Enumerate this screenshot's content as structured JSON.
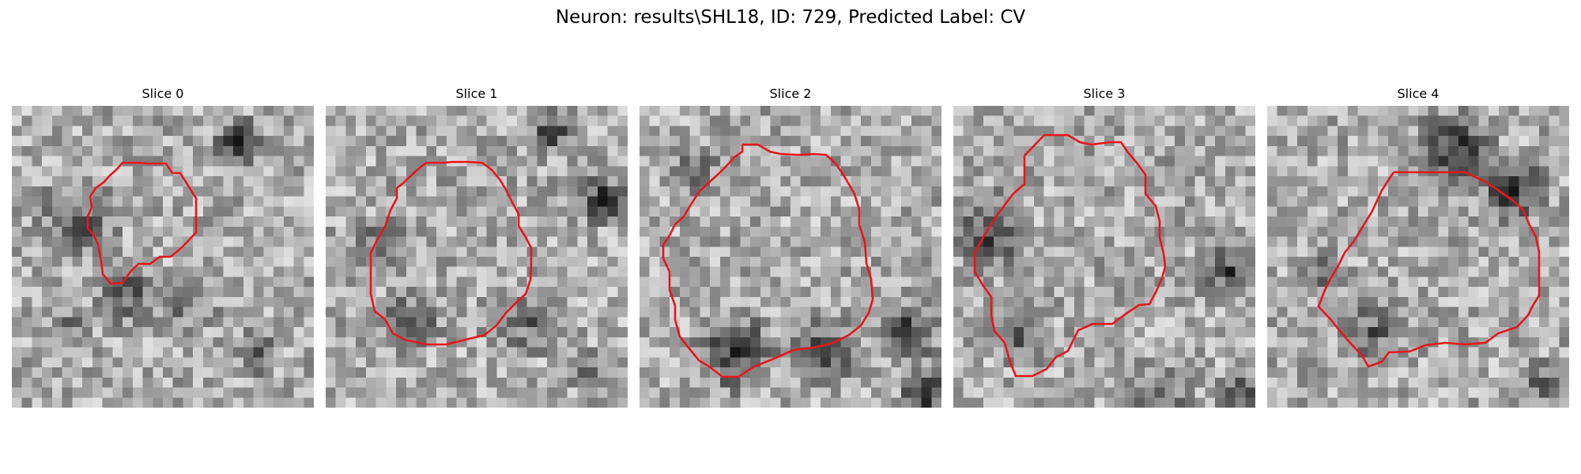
{
  "figure": {
    "title": "Neuron: results\\SHL18, ID: 729, Predicted Label: CV"
  },
  "panels": [
    {
      "title": "Slice 0"
    },
    {
      "title": "Slice 1"
    },
    {
      "title": "Slice 2"
    },
    {
      "title": "Slice 3"
    },
    {
      "title": "Slice 4"
    }
  ],
  "colors": {
    "contour": "#e8161a",
    "background": "#ffffff",
    "image_colormap": "grayscale"
  }
}
